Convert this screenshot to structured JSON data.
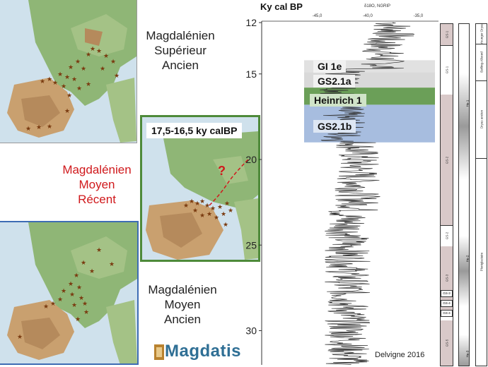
{
  "phases": {
    "superieur": [
      "Magdalénien",
      "Supérieur",
      "Ancien"
    ],
    "moyen_recent": [
      "Magdalénien",
      "Moyen",
      "Récent"
    ],
    "moyen_ancien": [
      "Magdalénien",
      "Moyen",
      "Ancien"
    ]
  },
  "center_map": {
    "title": "17,5-16,5 ky calBP",
    "question_mark": "?"
  },
  "logo": {
    "text": "Magdatis"
  },
  "chart_data": {
    "type": "line",
    "title": "",
    "ylabel": "Ky cal BP",
    "xlabel": "δ18O, NGRIP",
    "x_ticks": [
      "-45,0",
      "-40,0",
      "-35,0"
    ],
    "xlim": [
      -47,
      -33
    ],
    "y_ticks": [
      "12",
      "15",
      "20",
      "25",
      "30"
    ],
    "ylim": [
      12,
      32
    ],
    "y_inverted": true,
    "bands": [
      {
        "label": "GI 1e",
        "from": 14.2,
        "to": 14.9,
        "color": "#dedede"
      },
      {
        "label": "GS2.1a",
        "from": 14.9,
        "to": 15.8,
        "color": "#d5d5d5"
      },
      {
        "label": "Heinrich 1",
        "from": 15.8,
        "to": 16.8,
        "color": "#5b9546"
      },
      {
        "label": "GS2.1b",
        "from": 16.8,
        "to": 19.0,
        "color": "#9db6dc"
      }
    ],
    "credit": "Delvigne 2016"
  },
  "side_columns": {
    "gs_labels": [
      "GS-1",
      "GS-1",
      "GS-2",
      "GS-2",
      "GS-3",
      "GS-3",
      "GS-4",
      "GS-4",
      "GS-5"
    ],
    "he_labels": [
      "He-1",
      "He-2",
      "He-3"
    ],
    "period_labels": [
      "Younger Dryas",
      "Bølling-Allerød",
      "Dryas ancien",
      "Pleniglaciaire"
    ]
  },
  "colors": {
    "map_green": "#7fa869",
    "map_brown": "#c49a6c",
    "sea": "#cfe1ec",
    "site_marker": "#7a3b10",
    "frame_blue": "#3e6cb4",
    "frame_green": "#4e8a3a",
    "red_text": "#d0191c"
  }
}
